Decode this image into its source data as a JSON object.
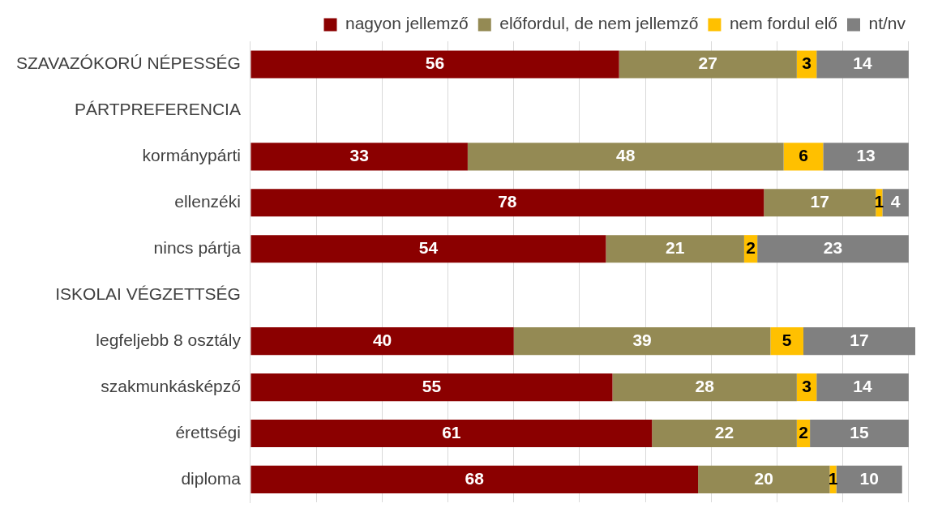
{
  "chart_data": {
    "type": "bar",
    "orientation": "horizontal",
    "stacked": true,
    "categories": [
      "SZAVAZÓKORÚ NÉPESSÉG",
      "PÁRTPREFERENCIA",
      "kormánypárti",
      "ellenzéki",
      "nincs pártja",
      "ISKOLAI VÉGZETTSÉG",
      "legfeljebb 8 osztály",
      "szakmunkásképző",
      "érettségi",
      "diploma"
    ],
    "series": [
      {
        "name": "nagyon jellemző",
        "color": "#8b0000",
        "values": [
          56,
          null,
          33,
          78,
          54,
          null,
          40,
          55,
          61,
          68
        ]
      },
      {
        "name": "előfordul, de nem jellemző",
        "color": "#948a54",
        "values": [
          27,
          null,
          48,
          17,
          21,
          null,
          39,
          28,
          22,
          20
        ]
      },
      {
        "name": "nem fordul elő",
        "color": "#ffc000",
        "values": [
          3,
          null,
          6,
          1,
          2,
          null,
          5,
          3,
          2,
          1
        ]
      },
      {
        "name": "nt/nv",
        "color": "#808080",
        "values": [
          14,
          null,
          13,
          4,
          23,
          null,
          17,
          14,
          15,
          10
        ]
      }
    ],
    "xlim": [
      0,
      101
    ],
    "xticks": [
      {
        "value": 0,
        "label": null
      },
      {
        "value": 10,
        "label": null
      },
      {
        "value": 20,
        "label": null
      },
      {
        "value": 30,
        "label": null
      },
      {
        "value": 40,
        "label": null
      },
      {
        "value": 50,
        "label": null
      },
      {
        "value": 60,
        "label": null
      },
      {
        "value": 70,
        "label": null
      },
      {
        "value": 80,
        "label": null
      },
      {
        "value": 90,
        "label": null
      },
      {
        "value": 100,
        "label": null
      }
    ],
    "tick_labels": "y",
    "grid": "x",
    "legend": "top right",
    "data_labels": true
  }
}
